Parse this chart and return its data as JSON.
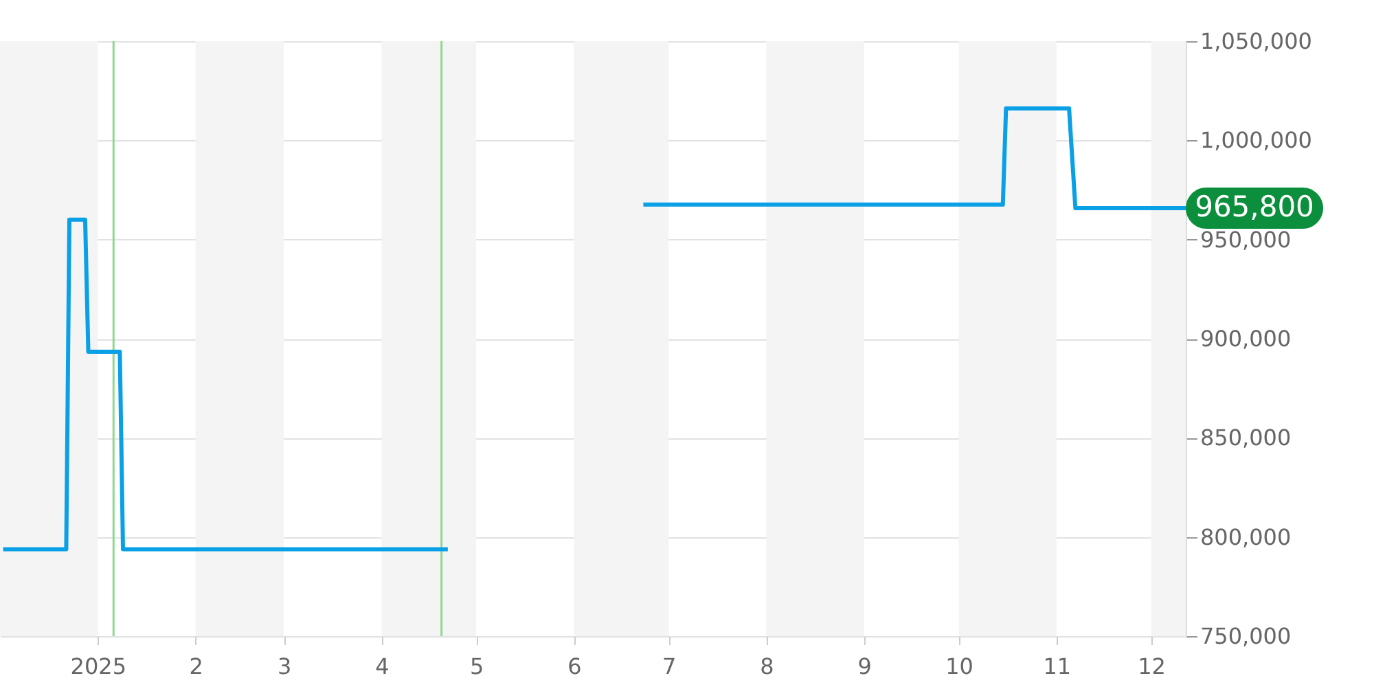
{
  "chart_data": {
    "type": "line",
    "x": [
      "2024-12-02",
      "2024-12-22",
      "2024-12-23",
      "2024-12-28",
      "2024-12-29",
      "2025-01-08",
      "2025-01-09",
      "2025-04-22",
      "2025-05-01",
      "2025-06-23",
      "2025-10-15",
      "2025-10-16",
      "2025-11-05",
      "2025-11-07",
      "2025-12-12"
    ],
    "series": [
      {
        "color": "#0aa0e6",
        "values": [
          793800,
          793800,
          960000,
          960000,
          893400,
          893400,
          793800,
          793800,
          null,
          967600,
          967600,
          1016100,
          1016100,
          965800,
          965800
        ]
      }
    ],
    "xlim": [
      "2024-12-01",
      "2025-12-12"
    ],
    "xticks": [
      {
        "value": "2025-01-01",
        "label": "2025"
      },
      {
        "value": "2025-02-01",
        "label": "2"
      },
      {
        "value": "2025-03-01",
        "label": "3"
      },
      {
        "value": "2025-04-01",
        "label": "4"
      },
      {
        "value": "2025-05-01",
        "label": "5"
      },
      {
        "value": "2025-06-01",
        "label": "6"
      },
      {
        "value": "2025-07-01",
        "label": "7"
      },
      {
        "value": "2025-08-01",
        "label": "8"
      },
      {
        "value": "2025-09-01",
        "label": "9"
      },
      {
        "value": "2025-10-01",
        "label": "10"
      },
      {
        "value": "2025-11-01",
        "label": "11"
      },
      {
        "value": "2025-12-01",
        "label": "12"
      }
    ],
    "ylim": [
      750000,
      1050000
    ],
    "yticks": [
      {
        "value": 750000,
        "label": "750,000"
      },
      {
        "value": 800000,
        "label": "800,000"
      },
      {
        "value": 850000,
        "label": "850,000"
      },
      {
        "value": 900000,
        "label": "900,000"
      },
      {
        "value": 950000,
        "label": "950,000"
      },
      {
        "value": 1000000,
        "label": "1,000,000"
      },
      {
        "value": 1050000,
        "label": "1,050,000"
      }
    ],
    "grid": "y",
    "marker": "none",
    "line_style": "solid",
    "bands": [
      {
        "axis": "x",
        "from": "2024-12-01",
        "to": "2025-01-01",
        "color": "#f4f4f4"
      },
      {
        "axis": "x",
        "from": "2025-02-01",
        "to": "2025-03-01",
        "color": "#f4f4f4"
      },
      {
        "axis": "x",
        "from": "2025-04-01",
        "to": "2025-05-01",
        "color": "#f4f4f4"
      },
      {
        "axis": "x",
        "from": "2025-06-01",
        "to": "2025-07-01",
        "color": "#f4f4f4"
      },
      {
        "axis": "x",
        "from": "2025-08-01",
        "to": "2025-09-01",
        "color": "#f4f4f4"
      },
      {
        "axis": "x",
        "from": "2025-10-01",
        "to": "2025-11-01",
        "color": "#f4f4f4"
      },
      {
        "axis": "x",
        "from": "2025-12-01",
        "to": "2025-12-12",
        "color": "#f4f4f4"
      }
    ],
    "ref_lines": [
      {
        "axis": "x",
        "value": "2025-01-06",
        "color": "#8fd88f"
      },
      {
        "axis": "x",
        "value": "2025-04-20",
        "color": "#8fd88f"
      }
    ],
    "annotations": [
      {
        "text": "965,800",
        "x": "2025-12-12",
        "y": 965800
      }
    ]
  }
}
